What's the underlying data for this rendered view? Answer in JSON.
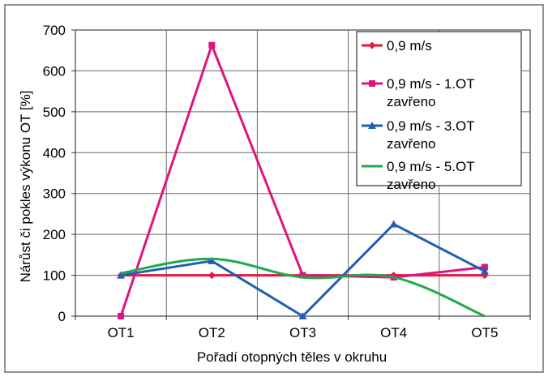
{
  "chart_data": {
    "type": "line",
    "categories": [
      "OT1",
      "OT2",
      "OT3",
      "OT4",
      "OT5"
    ],
    "series": [
      {
        "name": "0,9 m/s",
        "values": [
          100,
          100,
          100,
          100,
          100
        ],
        "color": "#e8173a",
        "marker": "diamond"
      },
      {
        "name": "0,9 m/s - 1.OT zavřeno",
        "values": [
          0,
          663,
          100,
          95,
          120
        ],
        "color": "#e0147f",
        "marker": "square"
      },
      {
        "name": "0,9 m/s - 3.OT zavřeno",
        "values": [
          100,
          135,
          0,
          225,
          110
        ],
        "color": "#1f5fb4",
        "marker": "triangle"
      },
      {
        "name": "0,9 m/s - 5.OT zavřeno",
        "values": [
          105,
          140,
          95,
          95,
          0
        ],
        "color": "#1faa4b",
        "marker": "none"
      }
    ],
    "xlabel": "Pořadí otopných těles v okruhu",
    "ylabel": "Nárůst či pokles výkonu OT [%]",
    "ylim": [
      0,
      700
    ],
    "yticks": [
      "0",
      "100",
      "200",
      "300",
      "400",
      "500",
      "600",
      "700"
    ],
    "grid": true,
    "legend": {
      "position": "top-right",
      "entries": [
        [
          "0,9 m/s"
        ],
        [
          "0,9 m/s - 1.OT",
          "zavřeno"
        ],
        [
          "0,9 m/s - 3.OT",
          "zavřeno"
        ],
        [
          "0,9 m/s - 5.OT",
          "zavřeno"
        ]
      ]
    }
  }
}
